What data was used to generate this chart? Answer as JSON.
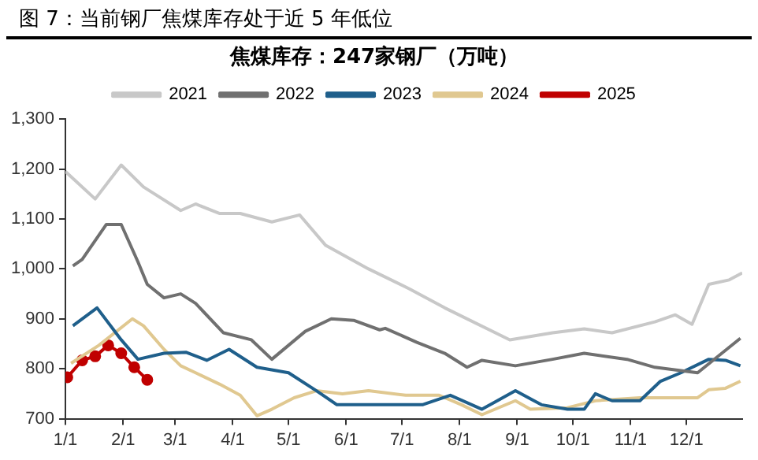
{
  "chart_data": {
    "type": "line",
    "title": "图 7：当前钢厂焦煤库存处于近 5 年低位",
    "subtitle": "焦煤库存：247家钢厂（万吨）",
    "xlim": [
      "--01-01",
      "--12-31"
    ],
    "xticks": [
      {
        "value": "--01-01",
        "label": "1/1"
      },
      {
        "value": "--02-01",
        "label": "2/1"
      },
      {
        "value": "--03-01",
        "label": "3/1"
      },
      {
        "value": "--04-01",
        "label": "4/1"
      },
      {
        "value": "--05-01",
        "label": "5/1"
      },
      {
        "value": "--06-01",
        "label": "6/1"
      },
      {
        "value": "--07-01",
        "label": "7/1"
      },
      {
        "value": "--08-01",
        "label": "8/1"
      },
      {
        "value": "--09-01",
        "label": "9/1"
      },
      {
        "value": "--10-01",
        "label": "10/1"
      },
      {
        "value": "--11-01",
        "label": "11/1"
      },
      {
        "value": "--12-01",
        "label": "12/1"
      }
    ],
    "ylim": [
      700,
      1300
    ],
    "yticks": [
      {
        "value": 700,
        "label": "700"
      },
      {
        "value": 800,
        "label": "800"
      },
      {
        "value": 900,
        "label": "900"
      },
      {
        "value": 1000,
        "label": "1,000"
      },
      {
        "value": 1100,
        "label": "1,100"
      },
      {
        "value": 1200,
        "label": "1,200"
      },
      {
        "value": 1300,
        "label": "1,300"
      }
    ],
    "grid": false,
    "legend": "top",
    "line_style": "solid",
    "series": [
      {
        "name": "2021",
        "color": "#c8c8c8",
        "marker": "none",
        "x": [
          "--01-01",
          "--01-17",
          "--01-31",
          "--02-12",
          "--03-04",
          "--03-12",
          "--03-25",
          "--04-05",
          "--04-22",
          "--05-07",
          "--05-21",
          "--06-13",
          "--07-05",
          "--07-24",
          "--08-28",
          "--09-20",
          "--10-07",
          "--10-22",
          "--11-14",
          "--11-25",
          "--12-04",
          "--12-13",
          "--12-24",
          "--12-31"
        ],
        "values": [
          1195,
          1140,
          1208,
          1164,
          1117,
          1130,
          1111,
          1111,
          1094,
          1108,
          1047,
          1000,
          960,
          922,
          858,
          872,
          880,
          872,
          894,
          908,
          889,
          969,
          978,
          992
        ]
      },
      {
        "name": "2022",
        "color": "#707070",
        "marker": "none",
        "x": [
          "--01-05",
          "--01-10",
          "--01-23",
          "--01-31",
          "--02-09",
          "--02-14",
          "--02-23",
          "--03-04",
          "--03-12",
          "--03-27",
          "--04-11",
          "--04-22",
          "--05-01",
          "--05-10",
          "--05-24",
          "--06-05",
          "--06-19",
          "--06-22",
          "--07-09",
          "--07-24",
          "--08-05",
          "--08-13",
          "--08-31",
          "--09-20",
          "--10-07",
          "--10-30",
          "--11-14",
          "--12-07",
          "--12-30"
        ],
        "values": [
          1006,
          1019,
          1089,
          1089,
          1014,
          969,
          942,
          950,
          931,
          872,
          858,
          819,
          847,
          875,
          900,
          897,
          878,
          881,
          853,
          831,
          803,
          817,
          806,
          819,
          831,
          819,
          803,
          792,
          861
        ]
      },
      {
        "name": "2023",
        "color": "#1f5f8b",
        "marker": "none",
        "x": [
          "--01-05",
          "--01-18",
          "--01-31",
          "--02-09",
          "--02-23",
          "--03-07",
          "--03-18",
          "--03-30",
          "--04-14",
          "--05-01",
          "--05-16",
          "--05-27",
          "--06-07",
          "--06-22",
          "--07-12",
          "--07-27",
          "--08-13",
          "--08-31",
          "--09-14",
          "--09-28",
          "--10-07",
          "--10-13",
          "--10-22",
          "--11-06",
          "--11-17",
          "--11-28",
          "--12-13",
          "--12-22",
          "--12-30"
        ],
        "values": [
          886,
          922,
          858,
          819,
          831,
          833,
          817,
          839,
          803,
          792,
          756,
          728,
          728,
          728,
          728,
          747,
          719,
          756,
          728,
          719,
          719,
          750,
          736,
          736,
          775,
          792,
          819,
          817,
          806
        ]
      },
      {
        "name": "2024",
        "color": "#e0c890",
        "marker": "none",
        "x": [
          "--01-04",
          "--01-19",
          "--02-06",
          "--02-12",
          "--02-23",
          "--03-04",
          "--03-12",
          "--03-25",
          "--04-05",
          "--04-14",
          "--04-22",
          "--05-04",
          "--05-16",
          "--05-30",
          "--06-13",
          "--07-03",
          "--07-21",
          "--08-02",
          "--08-13",
          "--08-31",
          "--09-08",
          "--09-28",
          "--10-13",
          "--11-06",
          "--11-25",
          "--12-07",
          "--12-13",
          "--12-22",
          "--12-30"
        ],
        "values": [
          811,
          847,
          900,
          886,
          839,
          806,
          792,
          769,
          747,
          706,
          719,
          742,
          756,
          750,
          756,
          747,
          747,
          728,
          708,
          736,
          719,
          722,
          736,
          742,
          742,
          742,
          758,
          761,
          775
        ]
      },
      {
        "name": "2025",
        "color": "#c00000",
        "marker": "circle",
        "x": [
          "--01-02",
          "--01-10",
          "--01-17",
          "--01-24",
          "--01-31",
          "--02-07",
          "--02-14"
        ],
        "values": [
          783,
          817,
          825,
          847,
          831,
          803,
          778
        ]
      }
    ]
  }
}
